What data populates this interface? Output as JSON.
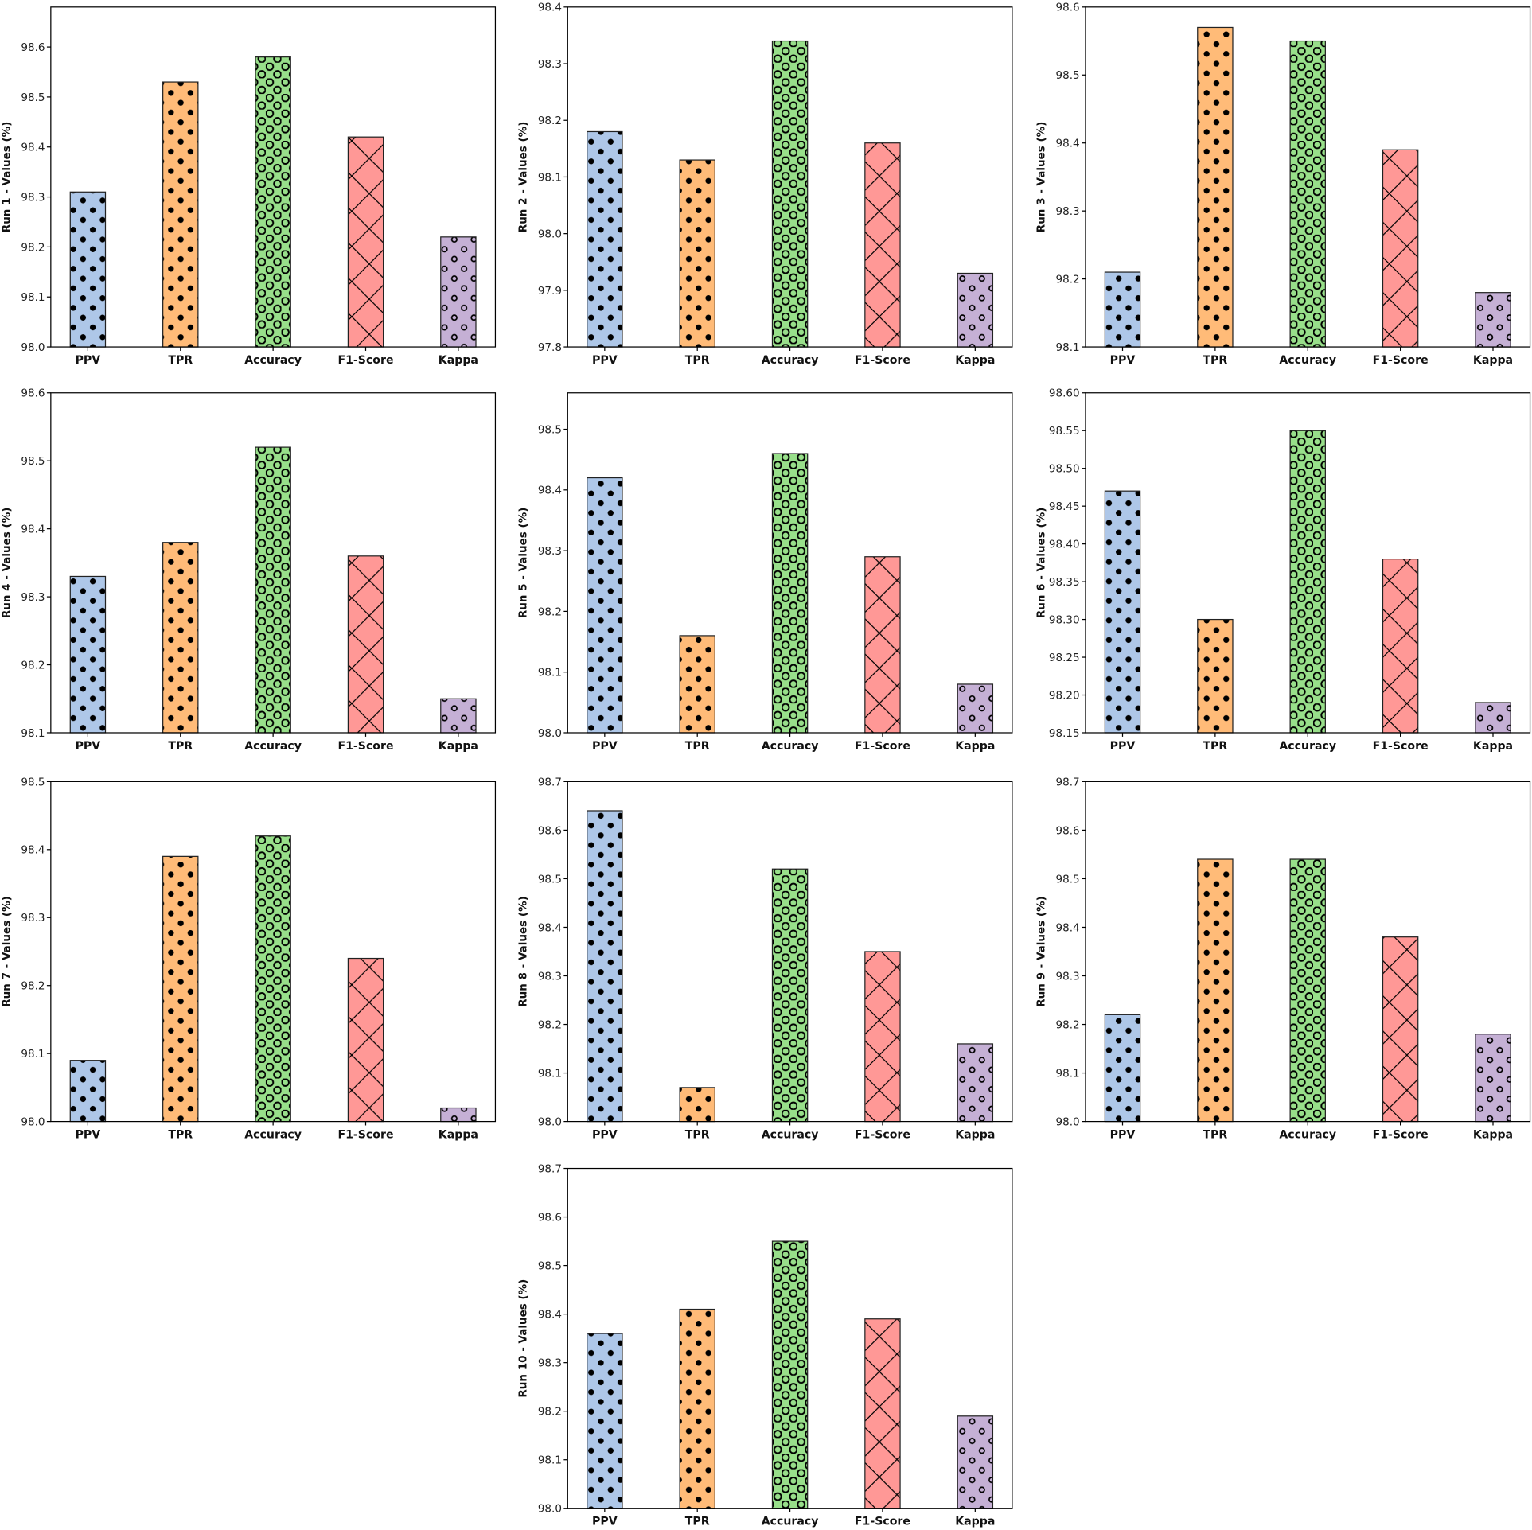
{
  "colors": {
    "PPV": "#aec7e8",
    "TPR": "#ffbb78",
    "Accuracy": "#98df8a",
    "F1-Score": "#ff9896",
    "Kappa": "#c5b0d5"
  },
  "hatches": {
    "PPV": "dots",
    "TPR": "dots",
    "Accuracy": "large-circles",
    "F1-Score": "cross",
    "Kappa": "small-circles"
  },
  "chart_data": [
    {
      "type": "bar",
      "ylabel": "Run 1 - Values (%)",
      "categories": [
        "PPV",
        "TPR",
        "Accuracy",
        "F1-Score",
        "Kappa"
      ],
      "values": [
        98.31,
        98.53,
        98.58,
        98.42,
        98.22
      ],
      "ylim": [
        98.0,
        98.68
      ],
      "yticks": [
        "98.0",
        "98.1",
        "98.2",
        "98.3",
        "98.4",
        "98.5",
        "98.6"
      ],
      "grid": false
    },
    {
      "type": "bar",
      "ylabel": "Run 2 - Values (%)",
      "categories": [
        "PPV",
        "TPR",
        "Accuracy",
        "F1-Score",
        "Kappa"
      ],
      "values": [
        98.18,
        98.13,
        98.34,
        98.16,
        97.93
      ],
      "ylim": [
        97.8,
        98.4
      ],
      "yticks": [
        "97.8",
        "97.9",
        "98.0",
        "98.1",
        "98.2",
        "98.3",
        "98.4"
      ],
      "grid": false
    },
    {
      "type": "bar",
      "ylabel": "Run 3 - Values (%)",
      "categories": [
        "PPV",
        "TPR",
        "Accuracy",
        "F1-Score",
        "Kappa"
      ],
      "values": [
        98.21,
        98.57,
        98.55,
        98.39,
        98.18
      ],
      "ylim": [
        98.1,
        98.6
      ],
      "yticks": [
        "98.1",
        "98.2",
        "98.3",
        "98.4",
        "98.5",
        "98.6"
      ],
      "grid": false
    },
    {
      "type": "bar",
      "ylabel": "Run 4 - Values (%)",
      "categories": [
        "PPV",
        "TPR",
        "Accuracy",
        "F1-Score",
        "Kappa"
      ],
      "values": [
        98.33,
        98.38,
        98.52,
        98.36,
        98.15
      ],
      "ylim": [
        98.1,
        98.6
      ],
      "yticks": [
        "98.1",
        "98.2",
        "98.3",
        "98.4",
        "98.5",
        "98.6"
      ],
      "grid": false
    },
    {
      "type": "bar",
      "ylabel": "Run 5 - Values (%)",
      "categories": [
        "PPV",
        "TPR",
        "Accuracy",
        "F1-Score",
        "Kappa"
      ],
      "values": [
        98.42,
        98.16,
        98.46,
        98.29,
        98.08
      ],
      "ylim": [
        98.0,
        98.56
      ],
      "yticks": [
        "98.0",
        "98.1",
        "98.2",
        "98.3",
        "98.4",
        "98.5"
      ],
      "grid": false
    },
    {
      "type": "bar",
      "ylabel": "Run 6 - Values (%)",
      "categories": [
        "PPV",
        "TPR",
        "Accuracy",
        "F1-Score",
        "Kappa"
      ],
      "values": [
        98.47,
        98.3,
        98.55,
        98.38,
        98.19
      ],
      "ylim": [
        98.15,
        98.6
      ],
      "yticks": [
        "98.15",
        "98.20",
        "98.25",
        "98.30",
        "98.35",
        "98.40",
        "98.45",
        "98.50",
        "98.55",
        "98.60"
      ],
      "grid": false
    },
    {
      "type": "bar",
      "ylabel": "Run 7 - Values (%)",
      "categories": [
        "PPV",
        "TPR",
        "Accuracy",
        "F1-Score",
        "Kappa"
      ],
      "values": [
        98.09,
        98.39,
        98.42,
        98.24,
        98.02
      ],
      "ylim": [
        98.0,
        98.5
      ],
      "yticks": [
        "98.0",
        "98.1",
        "98.2",
        "98.3",
        "98.4",
        "98.5"
      ],
      "grid": false
    },
    {
      "type": "bar",
      "ylabel": "Run 8 - Values (%)",
      "categories": [
        "PPV",
        "TPR",
        "Accuracy",
        "F1-Score",
        "Kappa"
      ],
      "values": [
        98.64,
        98.07,
        98.52,
        98.35,
        98.16
      ],
      "ylim": [
        98.0,
        98.7
      ],
      "yticks": [
        "98.0",
        "98.1",
        "98.2",
        "98.3",
        "98.4",
        "98.5",
        "98.6",
        "98.7"
      ],
      "grid": false
    },
    {
      "type": "bar",
      "ylabel": "Run 9 - Values (%)",
      "categories": [
        "PPV",
        "TPR",
        "Accuracy",
        "F1-Score",
        "Kappa"
      ],
      "values": [
        98.22,
        98.54,
        98.54,
        98.38,
        98.18
      ],
      "ylim": [
        98.0,
        98.7
      ],
      "yticks": [
        "98.0",
        "98.1",
        "98.2",
        "98.3",
        "98.4",
        "98.5",
        "98.6",
        "98.7"
      ],
      "grid": false
    },
    {
      "type": "bar",
      "ylabel": "Run 10 - Values (%)",
      "categories": [
        "PPV",
        "TPR",
        "Accuracy",
        "F1-Score",
        "Kappa"
      ],
      "values": [
        98.36,
        98.41,
        98.55,
        98.39,
        98.19
      ],
      "ylim": [
        98.0,
        98.7
      ],
      "yticks": [
        "98.0",
        "98.1",
        "98.2",
        "98.3",
        "98.4",
        "98.5",
        "98.6",
        "98.7"
      ],
      "grid": false
    }
  ]
}
